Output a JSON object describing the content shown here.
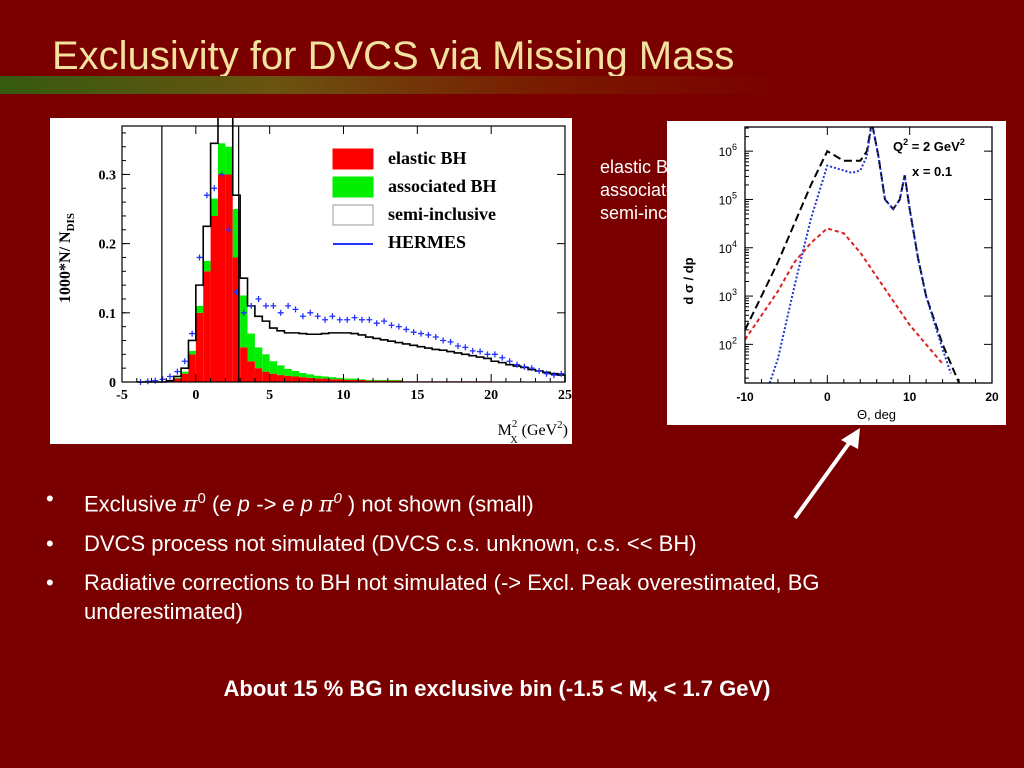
{
  "slide": {
    "title": "Exclusivity for DVCS via Missing Mass",
    "stray_legend": [
      "elastic BH",
      "associated BH",
      "semi-inclusive"
    ],
    "bullets": [
      {
        "parts": [
          {
            "text": "Exclusive ",
            "style": "plain"
          },
          {
            "text": "π",
            "style": "greek"
          },
          {
            "text": "0",
            "style": "sup"
          },
          {
            "text": " (",
            "style": "plain"
          },
          {
            "text": "e p -> e p ",
            "style": "italic"
          },
          {
            "text": "π",
            "style": "greek"
          },
          {
            "text": "0",
            "style": "sup-italic"
          },
          {
            "text": " ) not shown (small)",
            "style": "plain"
          }
        ]
      },
      {
        "parts": [
          {
            "text": "DVCS process not simulated (DVCS c.s. unknown, c.s. << BH)",
            "style": "plain"
          }
        ]
      },
      {
        "parts": [
          {
            "text": "Radiative corrections to BH not simulated  (-> Excl. Peak overestimated, BG underestimated)",
            "style": "plain"
          }
        ]
      }
    ],
    "bottom_note": {
      "before": "About 15 % BG in exclusive bin (-1.5 < M",
      "sub": "x",
      "after": " < 1.7 GeV)"
    },
    "colors": {
      "background": "#7a0000",
      "title": "#f2e2a0",
      "text": "#ffffff"
    }
  },
  "chart_data": [
    {
      "type": "bar",
      "subtype": "stacked histogram with data points",
      "ylabel": "1000*N/ N",
      "ylabel_sub": "DIS",
      "xlabel": "M",
      "xlabel_sup": "2",
      "xlabel_sub": "X",
      "xlabel_unit": "(GeV",
      "xlabel_unit_sup": "2",
      "xlabel_unit_end": ")",
      "xlim": [
        -5,
        25
      ],
      "ylim": [
        0,
        0.37
      ],
      "xticks": [
        -5,
        0,
        5,
        10,
        15,
        20,
        25
      ],
      "yticks": [
        0,
        0.1,
        0.2,
        0.3
      ],
      "ytick_labels": [
        "0",
        "0.1",
        "0.2",
        "0.3"
      ],
      "cut_lines": [
        -2.3,
        2.9
      ],
      "legend": [
        {
          "label": "elastic BH",
          "kind": "box",
          "color": "#ff0000"
        },
        {
          "label": "associated BH",
          "kind": "box",
          "color": "#00ee00"
        },
        {
          "label": "semi-inclusive",
          "kind": "box",
          "color": "#ffffff"
        },
        {
          "label": "HERMES",
          "kind": "line",
          "color": "#2233ff"
        }
      ],
      "legend_position": "upper-right",
      "bin_edges": [
        -4,
        -3.5,
        -3,
        -2.5,
        -2,
        -1.5,
        -1,
        -0.5,
        0,
        0.5,
        1,
        1.5,
        2,
        2.5,
        3,
        3.5,
        4,
        4.5,
        5,
        5.5,
        6,
        6.5,
        7,
        7.5,
        8,
        8.5,
        9,
        9.5,
        10,
        10.5,
        11,
        11.5,
        12,
        12.5,
        13,
        13.5,
        14,
        14.5,
        15,
        15.5,
        16,
        16.5,
        17,
        17.5,
        18,
        18.5,
        19,
        19.5,
        20,
        20.5,
        21,
        21.5,
        22,
        22.5,
        23,
        23.5,
        24,
        24.5,
        25
      ],
      "series": [
        {
          "name": "elastic BH",
          "color": "#ff0000",
          "values": [
            0,
            0,
            0,
            0,
            0.002,
            0.005,
            0.012,
            0.04,
            0.1,
            0.16,
            0.24,
            0.3,
            0.3,
            0.18,
            0.05,
            0.03,
            0.02,
            0.015,
            0.012,
            0.01,
            0.009,
            0.008,
            0.007,
            0.006,
            0.005,
            0.005,
            0.004,
            0.004,
            0.003,
            0.003,
            0.003,
            0.002,
            0.002,
            0.002,
            0.002,
            0.002,
            0.001,
            0.001,
            0.001,
            0.001,
            0.001,
            0.001,
            0.001,
            0.001,
            0.001,
            0.001,
            0.001,
            0.001,
            0,
            0,
            0,
            0,
            0,
            0,
            0,
            0,
            0,
            0
          ]
        },
        {
          "name": "associated BH",
          "color": "#00ee00",
          "values": [
            0,
            0,
            0,
            0,
            0,
            0.001,
            0.003,
            0.005,
            0.01,
            0.015,
            0.025,
            0.045,
            0.04,
            0.07,
            0.075,
            0.04,
            0.03,
            0.025,
            0.018,
            0.014,
            0.01,
            0.008,
            0.006,
            0.005,
            0.004,
            0.003,
            0.003,
            0.002,
            0.002,
            0.002,
            0.001,
            0.001,
            0.001,
            0.001,
            0.001,
            0.001,
            0,
            0,
            0,
            0,
            0,
            0,
            0,
            0,
            0,
            0,
            0,
            0,
            0,
            0,
            0,
            0,
            0,
            0,
            0,
            0,
            0,
            0
          ]
        },
        {
          "name": "semi-inclusive",
          "color": "#ffffff",
          "values": [
            0,
            0,
            0,
            0,
            0,
            0.002,
            0.005,
            0.015,
            0.03,
            0.05,
            0.08,
            0.07,
            0.05,
            0.02,
            0.025,
            0.04,
            0.045,
            0.048,
            0.048,
            0.05,
            0.052,
            0.055,
            0.057,
            0.058,
            0.06,
            0.062,
            0.064,
            0.065,
            0.066,
            0.065,
            0.064,
            0.062,
            0.06,
            0.058,
            0.056,
            0.054,
            0.054,
            0.052,
            0.05,
            0.048,
            0.046,
            0.045,
            0.043,
            0.041,
            0.039,
            0.037,
            0.035,
            0.033,
            0.03,
            0.028,
            0.025,
            0.023,
            0.021,
            0.018,
            0.016,
            0.014,
            0.012,
            0.01
          ]
        },
        {
          "name": "HERMES",
          "color": "#2233ff",
          "x": [
            -3.75,
            -3.25,
            -2.75,
            -2.25,
            -1.75,
            -1.25,
            -0.75,
            -0.25,
            0.25,
            0.75,
            1.25,
            1.75,
            2.25,
            2.75,
            3.25,
            3.75,
            4.25,
            4.75,
            5.25,
            5.75,
            6.25,
            6.75,
            7.25,
            7.75,
            8.25,
            8.75,
            9.25,
            9.75,
            10.25,
            10.75,
            11.25,
            11.75,
            12.25,
            12.75,
            13.25,
            13.75,
            14.25,
            14.75,
            15.25,
            15.75,
            16.25,
            16.75,
            17.25,
            17.75,
            18.25,
            18.75,
            19.25,
            19.75,
            20.25,
            20.75,
            21.25,
            21.75,
            22.25,
            22.75,
            23.25,
            23.75,
            24.25,
            24.75
          ],
          "values": [
            0.0,
            0.001,
            0.002,
            0.004,
            0.008,
            0.015,
            0.03,
            0.07,
            0.18,
            0.27,
            0.28,
            0.3,
            0.22,
            0.13,
            0.1,
            0.11,
            0.12,
            0.11,
            0.11,
            0.1,
            0.11,
            0.105,
            0.095,
            0.1,
            0.095,
            0.09,
            0.095,
            0.09,
            0.09,
            0.093,
            0.09,
            0.09,
            0.085,
            0.088,
            0.082,
            0.08,
            0.076,
            0.072,
            0.07,
            0.068,
            0.065,
            0.06,
            0.058,
            0.052,
            0.05,
            0.045,
            0.044,
            0.04,
            0.04,
            0.035,
            0.03,
            0.025,
            0.022,
            0.02,
            0.016,
            0.012,
            0.01,
            0.012
          ]
        }
      ]
    },
    {
      "type": "line",
      "scale": "log-y",
      "ylabel": "d σ / dp",
      "xlabel": "Θ",
      "xlabel_unit": ", deg",
      "xlim": [
        -10,
        20
      ],
      "ylim_log10": [
        1.2,
        6.5
      ],
      "xticks": [
        -10,
        0,
        10,
        20
      ],
      "yticks_log10": [
        2,
        3,
        4,
        5,
        6
      ],
      "ytick_base": "10",
      "annotations": [
        {
          "text": "Q",
          "sup": "2",
          "after": " = 2 GeV",
          "after_sup": "2"
        },
        {
          "text": "x = 0.1"
        }
      ],
      "series": [
        {
          "style": "dashed",
          "color": "#000000",
          "x": [
            -10,
            -8,
            -6,
            -4,
            -2,
            0,
            2,
            4,
            4.8,
            5.4,
            6.2,
            7,
            8,
            8.8,
            9.4,
            10,
            11,
            12,
            14,
            15,
            16
          ],
          "log10y": [
            2.3,
            3.0,
            3.7,
            4.5,
            5.3,
            6.0,
            5.8,
            5.8,
            6.0,
            6.6,
            5.9,
            5.0,
            4.8,
            5.0,
            5.5,
            4.8,
            3.8,
            3.0,
            2.0,
            1.6,
            1.2
          ]
        },
        {
          "style": "dotted",
          "color": "#2233cc",
          "x": [
            -7,
            -6,
            -4,
            -2,
            0,
            2,
            3,
            4,
            4.8,
            5.4,
            6.2,
            7,
            8,
            8.8,
            9.4,
            10,
            11,
            12,
            14,
            15
          ],
          "log10y": [
            1.2,
            1.7,
            3.2,
            4.6,
            5.7,
            5.6,
            5.55,
            5.6,
            5.9,
            6.6,
            5.9,
            5.0,
            4.8,
            5.0,
            5.5,
            4.8,
            3.8,
            3.0,
            1.9,
            1.4
          ]
        },
        {
          "style": "dashed",
          "color": "#dd2222",
          "x": [
            -10,
            -8,
            -6,
            -4,
            -2,
            0,
            2,
            4,
            6,
            8,
            10,
            12,
            14
          ],
          "log10y": [
            2.1,
            2.6,
            3.1,
            3.7,
            4.1,
            4.4,
            4.3,
            3.9,
            3.4,
            2.9,
            2.4,
            2.0,
            1.6
          ]
        }
      ]
    }
  ]
}
